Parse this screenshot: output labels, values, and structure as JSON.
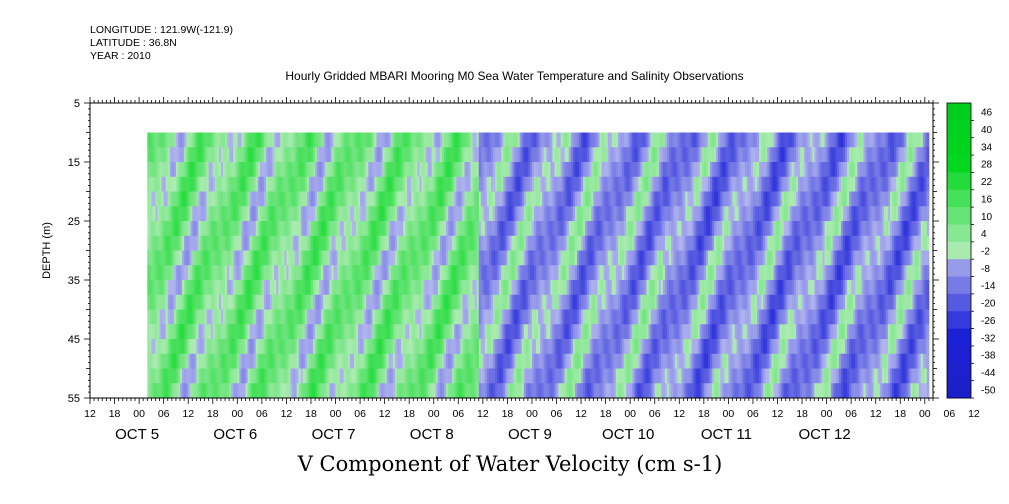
{
  "header": {
    "longitude": "LONGITUDE : 121.9W(-121.9)",
    "latitude": "LATITUDE : 36.8N",
    "year": "YEAR : 2010"
  },
  "chart_data": {
    "type": "heatmap",
    "title": "Hourly Gridded MBARI Mooring M0 Sea Water Temperature and Salinity Observations",
    "xlabel": "V Component of Water Velocity (cm s-1)",
    "ylabel": "DEPTH (m)",
    "y_axis": {
      "range": [
        5,
        55
      ],
      "inverted": true,
      "ticks": [
        5,
        15,
        25,
        35,
        45,
        55
      ]
    },
    "x_axis": {
      "range_hours_from_oct4_12h": [
        0,
        206
      ],
      "hour_tick_labels": [
        "12",
        "18",
        "00",
        "06",
        "12",
        "18",
        "00",
        "06",
        "12",
        "18",
        "00",
        "06",
        "12",
        "18",
        "00",
        "06",
        "12",
        "18",
        "00",
        "06",
        "12",
        "18",
        "00",
        "06",
        "12",
        "18",
        "00",
        "06",
        "12",
        "18",
        "00",
        "06",
        "12",
        "18",
        "00",
        "06",
        "12"
      ],
      "day_labels": [
        "OCT 5",
        "OCT 6",
        "OCT 7",
        "OCT 8",
        "OCT 9",
        "OCT 10",
        "OCT 11",
        "OCT 12"
      ]
    },
    "data_extent": {
      "time_start": "OCT 5 ~ 02h",
      "depth_range_m": [
        10,
        55
      ]
    },
    "colorbar": {
      "labels": [
        "46",
        "40",
        "34",
        "28",
        "22",
        "16",
        "10",
        "4",
        "-2",
        "-8",
        "-14",
        "-20",
        "-26",
        "-32",
        "-38",
        "-44",
        "-50"
      ],
      "min": -50,
      "max": 50
    },
    "colors": {
      "positive": "#00cc33",
      "negative": "#3344cc",
      "near_zero_pos": "#99e6a6",
      "near_zero_neg": "#99a6e6"
    },
    "pattern": "alternating diagonal green (northward) and blue (southward) bands; green dominant Oct 5-8, blue dominant Oct 9-12"
  }
}
